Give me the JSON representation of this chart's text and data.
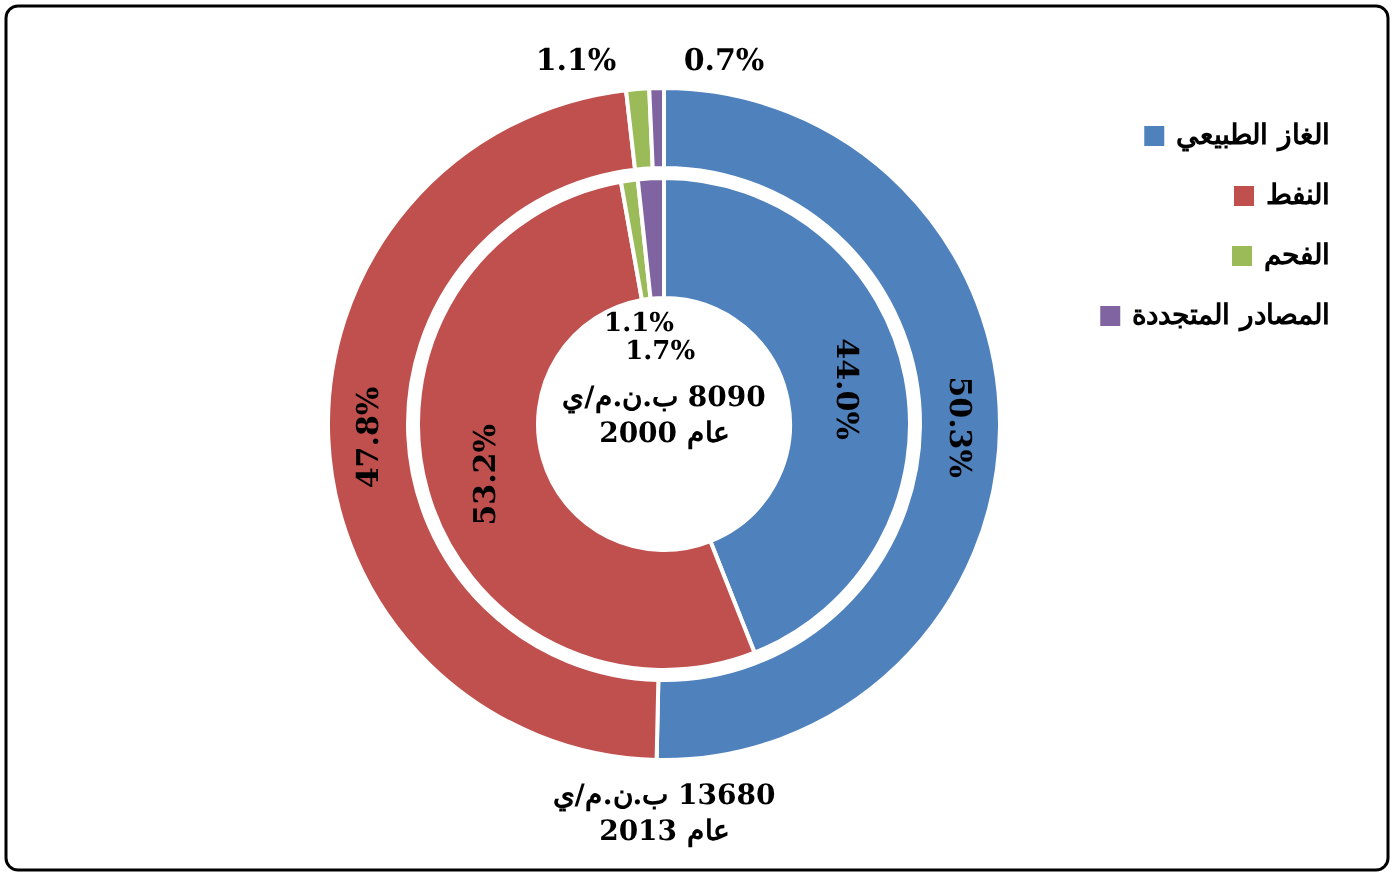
{
  "chart_data": {
    "type": "donut",
    "categories": [
      "الغاز الطبيعي",
      "النفط",
      "الفحم",
      "المصادر المتجددة"
    ],
    "colors": [
      "#4f81bd",
      "#c0504d",
      "#9bbb59",
      "#8064a2"
    ],
    "series": [
      {
        "values": [
          44.0,
          53.2,
          1.1,
          1.7
        ],
        "value_labels": [
          "44.0%",
          "53.2%",
          "1.1%",
          "1.7%"
        ]
      },
      {
        "values": [
          50.3,
          47.8,
          1.1,
          0.7
        ],
        "value_labels": [
          "50.3%",
          "47.8%",
          "1.1%",
          "0.7%"
        ]
      }
    ],
    "annotations": [
      "8090 ب.ن.م/ي\nعام 2000",
      "13680 ب.ن.م/ي\nعام 2013"
    ],
    "legend": "right"
  }
}
